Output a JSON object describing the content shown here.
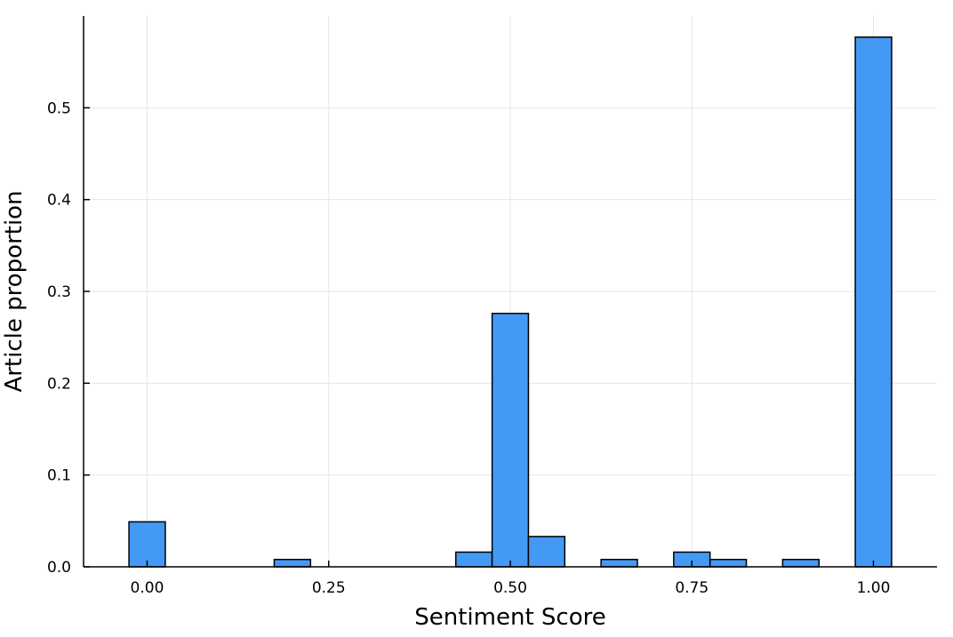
{
  "chart_data": {
    "type": "bar",
    "title": "",
    "xlabel": "Sentiment Score",
    "ylabel": "Article proportion",
    "xlim": [
      -0.0875,
      1.0875
    ],
    "ylim": [
      0,
      0.6
    ],
    "x_ticks": [
      0,
      0.25,
      0.5,
      0.75,
      1.0
    ],
    "x_tick_labels": [
      "0.00",
      "0.25",
      "0.50",
      "0.75",
      "1.00"
    ],
    "y_ticks": [
      0,
      0.1,
      0.2,
      0.3,
      0.4,
      0.5
    ],
    "y_tick_labels": [
      "0.0",
      "0.1",
      "0.2",
      "0.3",
      "0.4",
      "0.5"
    ],
    "grid": true,
    "legend": "none",
    "bar_color": "#4499f5",
    "bins": [
      {
        "x0": -0.025,
        "x1": 0.025,
        "value": 0.049
      },
      {
        "x0": 0.025,
        "x1": 0.075,
        "value": 0.0
      },
      {
        "x0": 0.075,
        "x1": 0.125,
        "value": 0.0
      },
      {
        "x0": 0.125,
        "x1": 0.175,
        "value": 0.0
      },
      {
        "x0": 0.175,
        "x1": 0.225,
        "value": 0.008
      },
      {
        "x0": 0.225,
        "x1": 0.275,
        "value": 0.0
      },
      {
        "x0": 0.275,
        "x1": 0.325,
        "value": 0.0
      },
      {
        "x0": 0.325,
        "x1": 0.375,
        "value": 0.0
      },
      {
        "x0": 0.375,
        "x1": 0.425,
        "value": 0.0
      },
      {
        "x0": 0.425,
        "x1": 0.475,
        "value": 0.016
      },
      {
        "x0": 0.475,
        "x1": 0.525,
        "value": 0.276
      },
      {
        "x0": 0.525,
        "x1": 0.575,
        "value": 0.033
      },
      {
        "x0": 0.575,
        "x1": 0.625,
        "value": 0.0
      },
      {
        "x0": 0.625,
        "x1": 0.675,
        "value": 0.008
      },
      {
        "x0": 0.675,
        "x1": 0.725,
        "value": 0.0
      },
      {
        "x0": 0.725,
        "x1": 0.775,
        "value": 0.016
      },
      {
        "x0": 0.775,
        "x1": 0.825,
        "value": 0.008
      },
      {
        "x0": 0.825,
        "x1": 0.875,
        "value": 0.0
      },
      {
        "x0": 0.875,
        "x1": 0.925,
        "value": 0.008
      },
      {
        "x0": 0.925,
        "x1": 0.975,
        "value": 0.0
      },
      {
        "x0": 0.975,
        "x1": 1.025,
        "value": 0.577
      }
    ]
  }
}
